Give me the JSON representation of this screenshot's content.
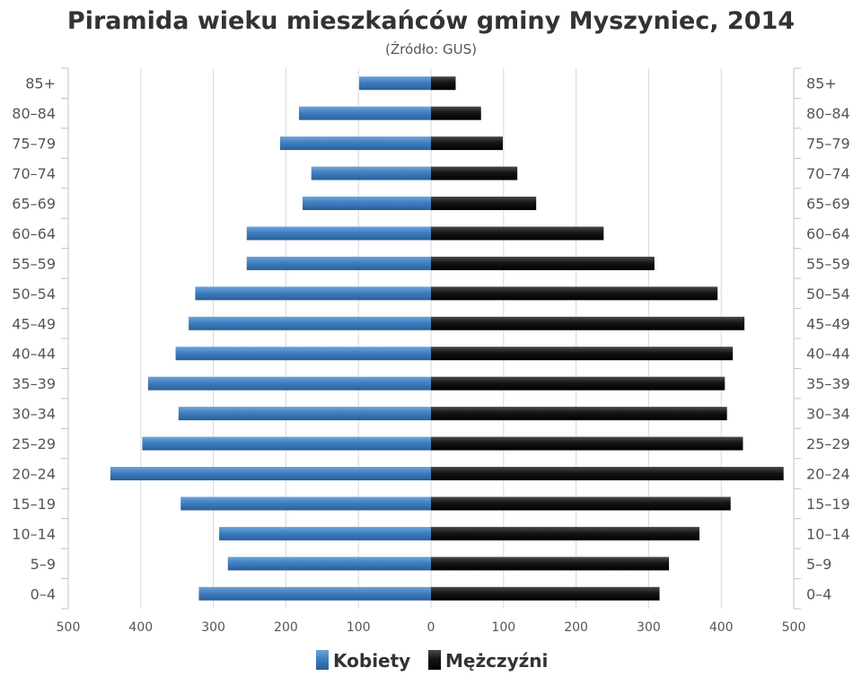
{
  "chart_data": {
    "type": "bar",
    "orientation": "horizontal-population-pyramid",
    "title": "Piramida wieku mieszkańców gminy Myszyniec, 2014",
    "subtitle": "(Źródło: GUS)",
    "categories": [
      "0–4",
      "5–9",
      "10–14",
      "15–19",
      "20–24",
      "25–29",
      "30–34",
      "35–39",
      "40–44",
      "45–49",
      "50–54",
      "55–59",
      "60–64",
      "65–69",
      "70–74",
      "75–79",
      "80–84",
      "85+"
    ],
    "series": [
      {
        "name": "Kobiety",
        "color": "#4a86c5",
        "values": [
          320,
          280,
          292,
          345,
          442,
          398,
          348,
          390,
          352,
          334,
          325,
          254,
          254,
          177,
          165,
          208,
          182,
          99
        ]
      },
      {
        "name": "Mężczyźni",
        "color": "#1a1a1a",
        "values": [
          315,
          328,
          370,
          413,
          486,
          430,
          408,
          405,
          416,
          432,
          395,
          308,
          238,
          145,
          119,
          99,
          69,
          34
        ]
      }
    ],
    "x_ticks": [
      "500",
      "400",
      "300",
      "200",
      "100",
      "0",
      "100",
      "200",
      "300",
      "400",
      "500"
    ],
    "xlim": [
      -500,
      500
    ],
    "grid": true,
    "legend_position": "bottom"
  }
}
